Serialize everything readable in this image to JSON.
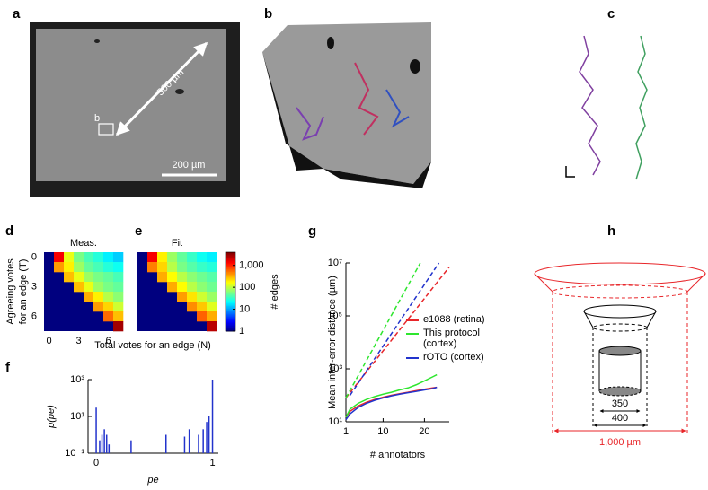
{
  "panel_labels": [
    "a",
    "b",
    "c",
    "d",
    "e",
    "f",
    "g",
    "h"
  ],
  "panel_a": {
    "scale_long": "500 µm",
    "scale_short": "200 µm",
    "inset_label": "b"
  },
  "panel_h": {
    "inner_diameter": "350",
    "outer_diameter": "400",
    "outer_width": "1,000 µm"
  },
  "colorbar": {
    "colorscale": "jet",
    "log_scale": true,
    "clim": [
      1,
      4000
    ],
    "ticks": [
      {
        "value": 1000,
        "label": "1,000"
      },
      100,
      10,
      1
    ],
    "label": "# edges"
  },
  "chart_data": [
    {
      "type": "heatmap",
      "title": "Meas.",
      "ylabel": [
        "Agreeing votes",
        "for an edge (T)"
      ],
      "xlabel": "Total votes for an edge (N)",
      "xlim": [
        -0.5,
        7.5
      ],
      "ylim": [
        -0.5,
        7.5
      ],
      "xticks": [
        0,
        3,
        6
      ],
      "yticks": [
        0,
        3,
        6
      ],
      "null_color": "#00007f",
      "values": [
        [
          null,
          1500,
          150,
          60,
          40,
          30,
          20,
          15
        ],
        [
          null,
          400,
          200,
          80,
          50,
          40,
          30,
          25
        ],
        [
          null,
          null,
          300,
          150,
          80,
          60,
          50,
          40
        ],
        [
          null,
          null,
          null,
          300,
          150,
          80,
          60,
          50
        ],
        [
          null,
          null,
          null,
          null,
          350,
          200,
          100,
          70
        ],
        [
          null,
          null,
          null,
          null,
          null,
          400,
          250,
          120
        ],
        [
          null,
          null,
          null,
          null,
          null,
          null,
          600,
          300
        ],
        [
          null,
          null,
          null,
          null,
          null,
          null,
          null,
          3000
        ]
      ]
    },
    {
      "type": "heatmap",
      "title": "Fit",
      "xlim": [
        -0.5,
        7.5
      ],
      "ylim": [
        -0.5,
        7.5
      ],
      "null_color": "#00007f",
      "colorbar": true,
      "values": [
        [
          null,
          1500,
          200,
          80,
          50,
          35,
          25,
          20
        ],
        [
          null,
          500,
          250,
          100,
          60,
          45,
          35,
          30
        ],
        [
          null,
          null,
          350,
          180,
          100,
          70,
          55,
          45
        ],
        [
          null,
          null,
          null,
          350,
          180,
          100,
          70,
          55
        ],
        [
          null,
          null,
          null,
          null,
          400,
          220,
          120,
          80
        ],
        [
          null,
          null,
          null,
          null,
          null,
          450,
          280,
          140
        ],
        [
          null,
          null,
          null,
          null,
          null,
          null,
          650,
          350
        ],
        [
          null,
          null,
          null,
          null,
          null,
          null,
          null,
          2500
        ]
      ]
    },
    {
      "type": "stem",
      "xlabel": "pe",
      "ylabel": "p(pe)",
      "color": "#2233cc",
      "log_y": true,
      "x": [
        0.0,
        0.03,
        0.05,
        0.07,
        0.09,
        0.11,
        0.3,
        0.6,
        0.76,
        0.8,
        0.88,
        0.92,
        0.95,
        0.97,
        1.0
      ],
      "values": [
        30,
        0.5,
        1,
        2,
        1,
        0.3,
        0.5,
        1,
        0.8,
        2,
        1,
        2,
        5,
        10,
        1000
      ],
      "xlim": [
        -0.07,
        1.05
      ],
      "ylim": [
        0.1,
        1000
      ],
      "xticks": [
        0,
        1
      ],
      "yticks": [
        {
          "value": 0.1,
          "label": "10⁻¹"
        },
        {
          "value": 10,
          "label": "10¹"
        },
        {
          "value": 1000,
          "label": "10³"
        }
      ]
    },
    {
      "type": "line",
      "xlabel": "# annotators",
      "ylabel": "Mean inter-error distance (µm)",
      "log_y": true,
      "x": [
        1,
        2,
        4,
        6,
        8,
        10,
        12,
        14,
        16,
        18,
        20,
        22,
        23
      ],
      "series": [
        {
          "name": "e1088 (retina)",
          "color": "#e8262a",
          "values": [
            15,
            25,
            40,
            55,
            70,
            85,
            100,
            115,
            130,
            150,
            170,
            190,
            200
          ],
          "fit_x": [
            1,
            26
          ],
          "fit_values": [
            80,
            7000000
          ]
        },
        {
          "name": "This protocol (cortex)",
          "color": "#2ee62e",
          "values": [
            15,
            30,
            50,
            70,
            90,
            110,
            130,
            160,
            190,
            250,
            350,
            500,
            600
          ],
          "fit_x": [
            1,
            19
          ],
          "fit_values": [
            80,
            10000000
          ]
        },
        {
          "name": "rOTO (cortex)",
          "color": "#2233cc",
          "values": [
            12,
            20,
            35,
            50,
            65,
            80,
            95,
            110,
            125,
            140,
            160,
            180,
            200
          ],
          "fit_x": [
            2,
            23.5
          ],
          "fit_values": [
            100,
            10000000
          ]
        }
      ],
      "xlim": [
        1,
        26
      ],
      "ylim": [
        10,
        10000000
      ],
      "xticks": [
        1,
        10,
        20
      ],
      "yticks": [
        {
          "value": 10,
          "label": "10¹"
        },
        {
          "value": 1000,
          "label": "10³"
        },
        {
          "value": 100000,
          "label": "10⁵"
        },
        {
          "value": 10000000,
          "label": "10⁷"
        }
      ]
    }
  ]
}
